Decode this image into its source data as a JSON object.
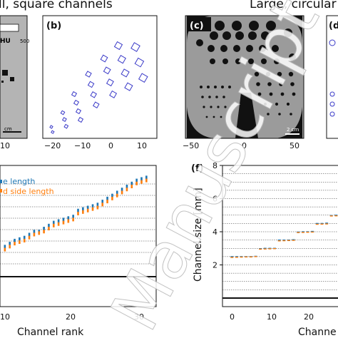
{
  "headings": {
    "left": "ll, square channels",
    "right": "Large, circular c"
  },
  "panels": {
    "a": {
      "scale_text": "500",
      "unit_text": "HU",
      "bar_label": "cm",
      "xtick": "10"
    },
    "b": {
      "label": "(b)",
      "xticks": [
        "−20",
        "−10",
        "0",
        "10"
      ]
    },
    "c": {
      "label": "(c)",
      "scalebar": "2 cm",
      "xticks": [
        "−50",
        "0",
        "50"
      ]
    },
    "d": {
      "label": "(d"
    },
    "e": {
      "legend": [
        "e length",
        "d side length"
      ],
      "xlabel": "Channel rank",
      "xticks": [
        "10",
        "20",
        "30"
      ]
    },
    "f": {
      "label": "(f)",
      "ylabel": "Channel size [mm]",
      "yticks": [
        "2",
        "4",
        "6",
        "8"
      ],
      "xticks": [
        "0",
        "10",
        "20"
      ],
      "xlabel": "Channe"
    }
  },
  "colors": {
    "blue": "#1f77b4",
    "orange": "#ff7f0e",
    "marker_blue": "#3a3ac8"
  },
  "watermark": "Manuscript",
  "chart_data": [
    {
      "type": "scatter",
      "panel": "e",
      "xlabel": "Channel rank",
      "series": [
        {
          "name": "e length",
          "color": "#1f77b4",
          "x": [
            1,
            2,
            3,
            4,
            5,
            6,
            7,
            8,
            9,
            10,
            11,
            12,
            13,
            14,
            15,
            16,
            17,
            18,
            19,
            20,
            21,
            22,
            23,
            24,
            25,
            26,
            27,
            28,
            29,
            30
          ],
          "y": [
            2.5,
            2.6,
            2.7,
            2.75,
            2.8,
            2.9,
            3.0,
            3.0,
            3.1,
            3.2,
            3.3,
            3.35,
            3.4,
            3.45,
            3.5,
            3.7,
            3.75,
            3.8,
            3.85,
            3.9,
            4.0,
            4.1,
            4.2,
            4.3,
            4.4,
            4.5,
            4.6,
            4.7,
            4.75,
            4.8
          ]
        },
        {
          "name": "d side length",
          "color": "#ff7f0e",
          "x": [
            1,
            2,
            3,
            4,
            5,
            6,
            7,
            8,
            9,
            10,
            11,
            12,
            13,
            14,
            15,
            16,
            17,
            18,
            19,
            20,
            21,
            22,
            23,
            24,
            25,
            26,
            27,
            28,
            29,
            30
          ],
          "y": [
            2.4,
            2.5,
            2.6,
            2.65,
            2.7,
            2.8,
            2.9,
            2.95,
            3.0,
            3.1,
            3.2,
            3.25,
            3.3,
            3.35,
            3.4,
            3.6,
            3.65,
            3.7,
            3.75,
            3.8,
            3.9,
            4.0,
            4.1,
            4.2,
            4.3,
            4.4,
            4.5,
            4.6,
            4.65,
            4.7
          ]
        }
      ]
    },
    {
      "type": "scatter",
      "panel": "f",
      "ylabel": "Channel size [mm]",
      "ylim": [
        0,
        8
      ],
      "xlim": [
        -2,
        23
      ],
      "series": [
        {
          "name": "blue",
          "color": "#1f77b4",
          "x": [
            0,
            1,
            2,
            3,
            4,
            5,
            6,
            7,
            8,
            9,
            10,
            11,
            12,
            13,
            14,
            15,
            16,
            17,
            18,
            19,
            20,
            21,
            22
          ],
          "y": [
            2.5,
            2.5,
            2.5,
            2.5,
            2.5,
            2.52,
            2.98,
            3.0,
            3.0,
            3.0,
            3.5,
            3.5,
            3.5,
            3.52,
            3.98,
            4.0,
            4.0,
            4.02,
            4.5,
            4.5,
            4.52,
            4.98,
            5.0
          ]
        },
        {
          "name": "orange",
          "color": "#ff7f0e",
          "x": [
            0,
            1,
            2,
            3,
            4,
            5,
            6,
            7,
            8,
            9,
            10,
            11,
            12,
            13,
            14,
            15,
            16,
            17,
            18,
            19,
            20,
            21,
            22
          ],
          "y": [
            2.45,
            2.46,
            2.47,
            2.48,
            2.48,
            2.5,
            2.95,
            2.96,
            2.97,
            2.98,
            3.45,
            3.46,
            3.47,
            3.48,
            3.95,
            3.96,
            3.97,
            3.98,
            4.45,
            4.46,
            4.47,
            4.95,
            4.96
          ]
        }
      ]
    }
  ]
}
